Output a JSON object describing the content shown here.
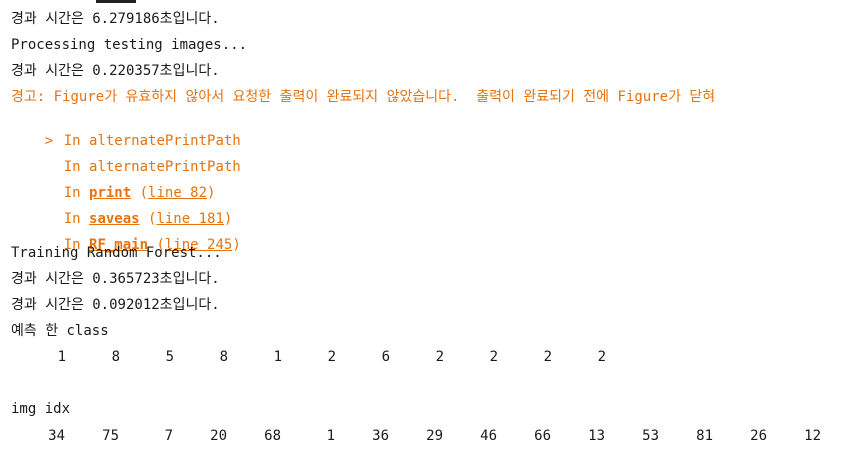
{
  "console": {
    "lines": {
      "elapsed1": "경과 시간은 6.279186초입니다.",
      "processing": "Processing testing images...",
      "elapsed2": "경과 시간은 0.220357초입니다.",
      "warning": "경고: Figure가 유효하지 않아서 요청한 출력이 완료되지 않았습니다.  출력이 완료되기 전에 Figure가 닫혀",
      "training": "Training Random Forest...",
      "elapsed3": "경과 시간은 0.365723초입니다.",
      "elapsed4": "경과 시간은 0.092012초입니다.",
      "predicted_label": "예측 한 class",
      "img_idx_label": "img idx"
    },
    "stack": {
      "marker": ">",
      "in_word": "In",
      "frames": [
        {
          "func": "alternatePrintPath",
          "line": ""
        },
        {
          "func": "alternatePrintPath",
          "line": ""
        },
        {
          "func": "print",
          "line": "line 82"
        },
        {
          "func": "saveas",
          "line": "line 181"
        },
        {
          "func": "RF_main",
          "line": "line 245"
        }
      ]
    },
    "predicted_classes": [
      "1",
      "8",
      "5",
      "8",
      "1",
      "2",
      "6",
      "2",
      "2",
      "2",
      "2"
    ],
    "img_indices": [
      "34",
      "75",
      "7",
      "20",
      "68",
      "1",
      "36",
      "29",
      "46",
      "66",
      "13",
      "53",
      "81",
      "26",
      "12"
    ]
  },
  "colors": {
    "warning": "#e8720c",
    "text": "#1a1a1a",
    "background": "#ffffff"
  }
}
